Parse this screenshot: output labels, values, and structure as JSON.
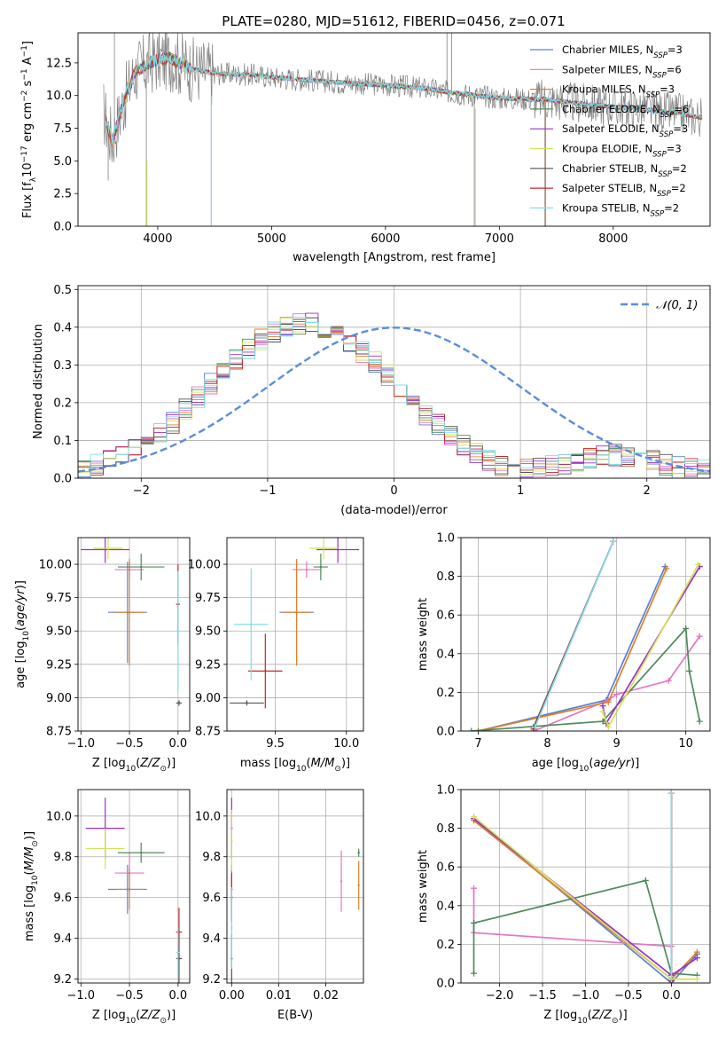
{
  "figure": {
    "title": "PLATE=0280, MJD=51612, FIBERID=0456, z=0.071"
  },
  "colors": {
    "Chabrier MILES": "#5b7fd6",
    "Salpeter MILES": "#e377c2",
    "Kroupa MILES": "#d9822b",
    "Chabrier ELODIE": "#4f8a5b",
    "Salpeter ELODIE": "#9b30c7",
    "Kroupa ELODIE": "#d4e157",
    "Chabrier STELIB": "#555555",
    "Salpeter STELIB": "#c62828",
    "Kroupa STELIB": "#80deea",
    "data": "#808080",
    "normal": "#5b8dd9"
  },
  "chart_data": [
    {
      "id": "spectrum",
      "type": "line",
      "title": "PLATE=0280, MJD=51612, FIBERID=0456, z=0.071",
      "xlabel": "wavelength [Angstrom, rest frame]",
      "ylabel": "Flux [f_λ 10^-17 erg cm^-2 s^-1 A^-1]",
      "xlim": [
        3300,
        8850
      ],
      "ylim": [
        0,
        14.8
      ],
      "xticks": [
        4000,
        5000,
        6000,
        7000,
        8000
      ],
      "yticks": [
        0.0,
        2.5,
        5.0,
        7.5,
        10.0,
        12.5
      ],
      "grid": false,
      "legend_position": "upper right",
      "legend": [
        {
          "label": "Chabrier MILES, N_SSP=3",
          "base": "Chabrier MILES, N",
          "sub": "SSP",
          "tail": "=3"
        },
        {
          "label": "Salpeter MILES, N_SSP=6",
          "base": "Salpeter MILES, N",
          "sub": "SSP",
          "tail": "=6"
        },
        {
          "label": "Kroupa MILES, N_SSP=3",
          "base": "Kroupa MILES, N",
          "sub": "SSP",
          "tail": "=3"
        },
        {
          "label": "Chabrier ELODIE, N_SSP=6",
          "base": "Chabrier ELODIE, N",
          "sub": "SSP",
          "tail": "=6"
        },
        {
          "label": "Salpeter ELODIE, N_SSP=3",
          "base": "Salpeter ELODIE, N",
          "sub": "SSP",
          "tail": "=3"
        },
        {
          "label": "Kroupa ELODIE, N_SSP=3",
          "base": "Kroupa ELODIE, N",
          "sub": "SSP",
          "tail": "=3"
        },
        {
          "label": "Chabrier STELIB, N_SSP=2",
          "base": "Chabrier STELIB, N",
          "sub": "SSP",
          "tail": "=2"
        },
        {
          "label": "Salpeter STELIB, N_SSP=2",
          "base": "Salpeter STELIB, N",
          "sub": "SSP",
          "tail": "=2"
        },
        {
          "label": "Kroupa STELIB, N_SSP=2",
          "base": "Kroupa STELIB, N",
          "sub": "SSP",
          "tail": "=2"
        }
      ],
      "continuum": [
        [
          3520,
          8.8
        ],
        [
          3600,
          6.5
        ],
        [
          3700,
          9.5
        ],
        [
          3800,
          11.8
        ],
        [
          3950,
          12.6
        ],
        [
          4100,
          12.9
        ],
        [
          4300,
          12.0
        ],
        [
          4500,
          11.7
        ],
        [
          4800,
          11.6
        ],
        [
          5000,
          11.4
        ],
        [
          5300,
          11.2
        ],
        [
          5600,
          11.0
        ],
        [
          6000,
          10.8
        ],
        [
          6300,
          10.6
        ],
        [
          6600,
          10.2
        ],
        [
          7000,
          9.8
        ],
        [
          7400,
          9.7
        ],
        [
          7800,
          9.3
        ],
        [
          8200,
          9.0
        ],
        [
          8600,
          8.6
        ],
        [
          8780,
          8.3
        ]
      ]
    },
    {
      "id": "residuals",
      "type": "histogram",
      "xlabel": "(data-model)/error",
      "ylabel": "Normed distribution",
      "xlim": [
        -2.5,
        2.5
      ],
      "ylim": [
        0,
        0.51
      ],
      "xticks": [
        -2,
        -1,
        0,
        1,
        2
      ],
      "yticks": [
        0.0,
        0.1,
        0.2,
        0.3,
        0.4,
        0.5
      ],
      "grid": true,
      "legend_position": "upper right",
      "legend": [
        {
          "label": "N(0,1)",
          "text": "𝒩(0, 1)"
        }
      ],
      "bin_width": 0.1,
      "bin_start": -2.5,
      "mean_values": [
        0.025,
        0.03,
        0.035,
        0.04,
        0.045,
        0.05,
        0.058,
        0.066,
        0.075,
        0.085,
        0.096,
        0.108,
        0.12,
        0.134,
        0.149,
        0.164,
        0.18,
        0.196,
        0.213,
        0.23,
        0.248,
        0.265,
        0.282,
        0.299,
        0.315,
        0.33,
        0.345,
        0.358,
        0.37,
        0.381,
        0.39,
        0.397,
        0.403,
        0.406,
        0.408,
        0.408,
        0.407,
        0.404,
        0.399,
        0.392,
        0.384,
        0.374,
        0.363,
        0.35,
        0.336,
        0.322,
        0.306,
        0.29,
        0.273,
        0.256,
        0.24,
        0.222,
        0.205,
        0.188,
        0.171,
        0.155,
        0.14,
        0.125,
        0.112,
        0.099,
        0.087,
        0.076,
        0.066,
        0.057,
        0.049,
        0.042,
        0.036,
        0.031,
        0.028,
        0.026,
        0.025,
        0.025,
        0.026,
        0.028,
        0.03,
        0.033,
        0.036,
        0.04,
        0.044,
        0.048,
        0.052,
        0.055,
        0.058,
        0.06,
        0.061,
        0.06,
        0.058,
        0.055,
        0.052,
        0.048,
        0.044,
        0.04,
        0.036,
        0.032,
        0.028,
        0.025,
        0.022,
        0.02,
        0.019,
        0.018
      ]
    },
    {
      "id": "age_vs_Z",
      "type": "scatter",
      "xlabel": "Z [log10(Z/Z_sun)]",
      "ylabel": "age [log10(age/yr)]",
      "xlim": [
        -1.03,
        0.12
      ],
      "ylim": [
        8.75,
        10.2
      ],
      "xticks": [
        -1.0,
        -0.5,
        0.0
      ],
      "yticks": [
        8.75,
        9.0,
        9.25,
        9.5,
        9.75,
        10.0
      ],
      "grid": true,
      "points": [
        {
          "model": "Chabrier MILES",
          "x": -0.52,
          "xerr": 0.2,
          "y": 9.64,
          "yerr": 0.38
        },
        {
          "model": "Salpeter MILES",
          "x": -0.5,
          "xerr": 0.15,
          "y": 9.96,
          "yerr": 0.06
        },
        {
          "model": "Kroupa MILES",
          "x": -0.5,
          "xerr": 0.15,
          "y": 9.64,
          "yerr": 0.4
        },
        {
          "model": "Chabrier ELODIE",
          "x": -0.38,
          "xerr": 0.24,
          "y": 9.98,
          "yerr": 0.1
        },
        {
          "model": "Salpeter ELODIE",
          "x": -0.75,
          "xerr": 0.25,
          "y": 10.11,
          "yerr": 0.1
        },
        {
          "model": "Kroupa ELODIE",
          "x": -0.72,
          "xerr": 0.15,
          "y": 10.12,
          "yerr": 0.08
        },
        {
          "model": "Chabrier STELIB",
          "x": 0.01,
          "xerr": 0.03,
          "y": 8.96,
          "yerr": 0.02
        },
        {
          "model": "Salpeter STELIB",
          "x": 0.0,
          "xerr": 0.02,
          "y": 9.7,
          "yerr": 0.3
        },
        {
          "model": "Kroupa STELIB",
          "x": 0.0,
          "xerr": 0.02,
          "y": 9.5,
          "yerr": 0.45
        }
      ]
    },
    {
      "id": "age_vs_mass",
      "type": "scatter",
      "xlabel": "mass [log10(M/M_sun)]",
      "ylabel": "",
      "xlim": [
        9.16,
        10.12
      ],
      "ylim": [
        8.75,
        10.2
      ],
      "xticks": [
        9.5,
        10.0
      ],
      "yticks": [
        8.75,
        9.0,
        9.25,
        9.5,
        9.75,
        10.0
      ],
      "grid": true,
      "points": [
        {
          "model": "Chabrier MILES",
          "x": 9.65,
          "xerr": 0.12,
          "y": 9.64,
          "yerr": 0.38
        },
        {
          "model": "Salpeter MILES",
          "x": 9.72,
          "xerr": 0.1,
          "y": 9.96,
          "yerr": 0.06
        },
        {
          "model": "Kroupa MILES",
          "x": 9.65,
          "xerr": 0.1,
          "y": 9.64,
          "yerr": 0.4
        },
        {
          "model": "Chabrier ELODIE",
          "x": 9.82,
          "xerr": 0.05,
          "y": 9.98,
          "yerr": 0.1
        },
        {
          "model": "Salpeter ELODIE",
          "x": 9.94,
          "xerr": 0.15,
          "y": 10.11,
          "yerr": 0.1
        },
        {
          "model": "Kroupa ELODIE",
          "x": 9.84,
          "xerr": 0.1,
          "y": 10.12,
          "yerr": 0.08
        },
        {
          "model": "Chabrier STELIB",
          "x": 9.3,
          "xerr": 0.12,
          "y": 8.96,
          "yerr": 0.02
        },
        {
          "model": "Salpeter STELIB",
          "x": 9.43,
          "xerr": 0.12,
          "y": 9.2,
          "yerr": 0.28
        },
        {
          "model": "Kroupa STELIB",
          "x": 9.33,
          "xerr": 0.12,
          "y": 9.55,
          "yerr": 0.42
        }
      ]
    },
    {
      "id": "weight_vs_age",
      "type": "line",
      "xlabel": "age [log10(age/yr)]",
      "ylabel": "mass weight",
      "xlim": [
        6.75,
        10.35
      ],
      "ylim": [
        0,
        1
      ],
      "xticks": [
        7,
        8,
        9,
        10
      ],
      "yticks": [
        0.0,
        0.2,
        0.4,
        0.6,
        0.8,
        1.0
      ],
      "grid": true,
      "series": [
        {
          "model": "Chabrier MILES",
          "points": [
            [
              7.0,
              0.0
            ],
            [
              8.85,
              0.16
            ],
            [
              9.7,
              0.85
            ]
          ]
        },
        {
          "model": "Salpeter MILES",
          "points": [
            [
              7.8,
              0.0
            ],
            [
              8.88,
              0.16
            ],
            [
              9.0,
              0.19
            ],
            [
              9.75,
              0.26
            ],
            [
              10.2,
              0.49
            ]
          ]
        },
        {
          "model": "Kroupa MILES",
          "points": [
            [
              7.0,
              0.0
            ],
            [
              8.88,
              0.15
            ],
            [
              9.72,
              0.84
            ]
          ]
        },
        {
          "model": "Chabrier ELODIE",
          "points": [
            [
              6.9,
              0.0
            ],
            [
              8.8,
              0.05
            ],
            [
              10.0,
              0.53
            ],
            [
              10.05,
              0.31
            ],
            [
              10.2,
              0.05
            ]
          ]
        },
        {
          "model": "Salpeter ELODIE",
          "points": [
            [
              8.8,
              0.13
            ],
            [
              8.85,
              0.04
            ],
            [
              10.2,
              0.85
            ]
          ]
        },
        {
          "model": "Kroupa ELODIE",
          "points": [
            [
              8.8,
              0.1
            ],
            [
              8.88,
              0.02
            ],
            [
              10.18,
              0.86
            ]
          ]
        },
        {
          "model": "Chabrier STELIB",
          "points": [
            [
              7.8,
              0.02
            ],
            [
              8.95,
              0.98
            ]
          ]
        },
        {
          "model": "Salpeter STELIB",
          "points": [
            [
              7.8,
              0.01
            ],
            [
              8.95,
              0.98
            ]
          ]
        },
        {
          "model": "Kroupa STELIB",
          "points": [
            [
              7.82,
              0.02
            ],
            [
              8.95,
              0.98
            ]
          ]
        }
      ]
    },
    {
      "id": "mass_vs_Z",
      "type": "scatter",
      "xlabel": "Z [log10(Z/Z_sun)]",
      "ylabel": "mass [log10(M/M_sun)]",
      "xlim": [
        -1.03,
        0.12
      ],
      "ylim": [
        9.18,
        10.13
      ],
      "xticks": [
        -1.0,
        -0.5,
        0.0
      ],
      "yticks": [
        9.2,
        9.4,
        9.6,
        9.8,
        10.0
      ],
      "grid": true,
      "points": [
        {
          "model": "Chabrier MILES",
          "x": -0.52,
          "xerr": 0.2,
          "y": 9.64,
          "yerr": 0.12
        },
        {
          "model": "Salpeter MILES",
          "x": -0.5,
          "xerr": 0.15,
          "y": 9.72,
          "yerr": 0.1
        },
        {
          "model": "Kroupa MILES",
          "x": -0.5,
          "xerr": 0.15,
          "y": 9.64,
          "yerr": 0.1
        },
        {
          "model": "Chabrier ELODIE",
          "x": -0.38,
          "xerr": 0.24,
          "y": 9.82,
          "yerr": 0.05
        },
        {
          "model": "Salpeter ELODIE",
          "x": -0.75,
          "xerr": 0.2,
          "y": 9.94,
          "yerr": 0.15
        },
        {
          "model": "Kroupa ELODIE",
          "x": -0.75,
          "xerr": 0.2,
          "y": 9.84,
          "yerr": 0.1
        },
        {
          "model": "Chabrier STELIB",
          "x": 0.01,
          "xerr": 0.03,
          "y": 9.3,
          "yerr": 0.12
        },
        {
          "model": "Salpeter STELIB",
          "x": 0.01,
          "xerr": 0.03,
          "y": 9.43,
          "yerr": 0.12
        },
        {
          "model": "Kroupa STELIB",
          "x": 0.0,
          "xerr": 0.02,
          "y": 9.33,
          "yerr": 0.12
        }
      ]
    },
    {
      "id": "mass_vs_EBV",
      "type": "scatter",
      "xlabel": "E(B-V)",
      "ylabel": "",
      "xlim": [
        -0.001,
        0.028
      ],
      "ylim": [
        9.18,
        10.13
      ],
      "xticks": [
        0.0,
        0.01,
        0.02
      ],
      "yticks": [
        9.2,
        9.4,
        9.6,
        9.8,
        10.0
      ],
      "grid": true,
      "points": [
        {
          "model": "Chabrier MILES",
          "x": 0.0,
          "y": 9.64,
          "yerr": 0.12
        },
        {
          "model": "Salpeter MILES",
          "x": 0.0233,
          "y": 9.68,
          "yerr": 0.15
        },
        {
          "model": "Kroupa MILES",
          "x": 0.027,
          "y": 9.66,
          "yerr": 0.12
        },
        {
          "model": "Chabrier ELODIE",
          "x": 0.027,
          "y": 9.82,
          "yerr": 0.02
        },
        {
          "model": "Salpeter ELODIE",
          "x": 0.0,
          "y": 9.94,
          "yerr": 0.15
        },
        {
          "model": "Kroupa ELODIE",
          "x": 0.0,
          "y": 9.88,
          "yerr": 0.15
        },
        {
          "model": "Chabrier STELIB",
          "x": 0.0,
          "y": 9.3,
          "yerr": 0.12
        },
        {
          "model": "Salpeter STELIB",
          "x": 0.0,
          "y": 9.6,
          "yerr": 0.12
        },
        {
          "model": "Kroupa STELIB",
          "x": 0.0,
          "y": 9.45,
          "yerr": 0.2
        }
      ]
    },
    {
      "id": "weight_vs_Z",
      "type": "line",
      "xlabel": "Z [log10(Z/Z_sun)]",
      "ylabel": "mass weight",
      "xlim": [
        -2.45,
        0.45
      ],
      "ylim": [
        0,
        1
      ],
      "xticks": [
        -2.0,
        -1.5,
        -1.0,
        -0.5,
        0.0
      ],
      "yticks": [
        0.0,
        0.2,
        0.4,
        0.6,
        0.8,
        1.0
      ],
      "grid": true,
      "series": [
        {
          "model": "Chabrier MILES",
          "points": [
            [
              -2.3,
              0.85
            ],
            [
              0.0,
              0.0
            ],
            [
              0.3,
              0.15
            ]
          ]
        },
        {
          "model": "Salpeter MILES",
          "points": [
            [
              -2.3,
              0.49
            ],
            [
              -2.3,
              0.26
            ],
            [
              0.0,
              0.19
            ]
          ]
        },
        {
          "model": "Kroupa MILES",
          "points": [
            [
              -2.3,
              0.84
            ],
            [
              0.0,
              0.02
            ],
            [
              0.3,
              0.16
            ]
          ]
        },
        {
          "model": "Chabrier ELODIE",
          "points": [
            [
              -2.3,
              0.05
            ],
            [
              -2.3,
              0.31
            ],
            [
              -0.3,
              0.53
            ],
            [
              0.0,
              0.05
            ],
            [
              0.3,
              0.04
            ]
          ]
        },
        {
          "model": "Salpeter ELODIE",
          "points": [
            [
              -2.3,
              0.85
            ],
            [
              0.0,
              0.04
            ],
            [
              0.3,
              0.13
            ]
          ]
        },
        {
          "model": "Kroupa ELODIE",
          "points": [
            [
              -2.3,
              0.86
            ],
            [
              0.0,
              0.02
            ],
            [
              0.3,
              0.02
            ]
          ]
        },
        {
          "model": "Chabrier STELIB",
          "points": [
            [
              0.0,
              0.02
            ],
            [
              0.0,
              0.98
            ]
          ]
        },
        {
          "model": "Salpeter STELIB",
          "points": [
            [
              0.0,
              0.01
            ],
            [
              0.0,
              0.98
            ]
          ]
        },
        {
          "model": "Kroupa STELIB",
          "points": [
            [
              0.0,
              0.02
            ],
            [
              0.0,
              0.98
            ]
          ]
        }
      ]
    }
  ]
}
